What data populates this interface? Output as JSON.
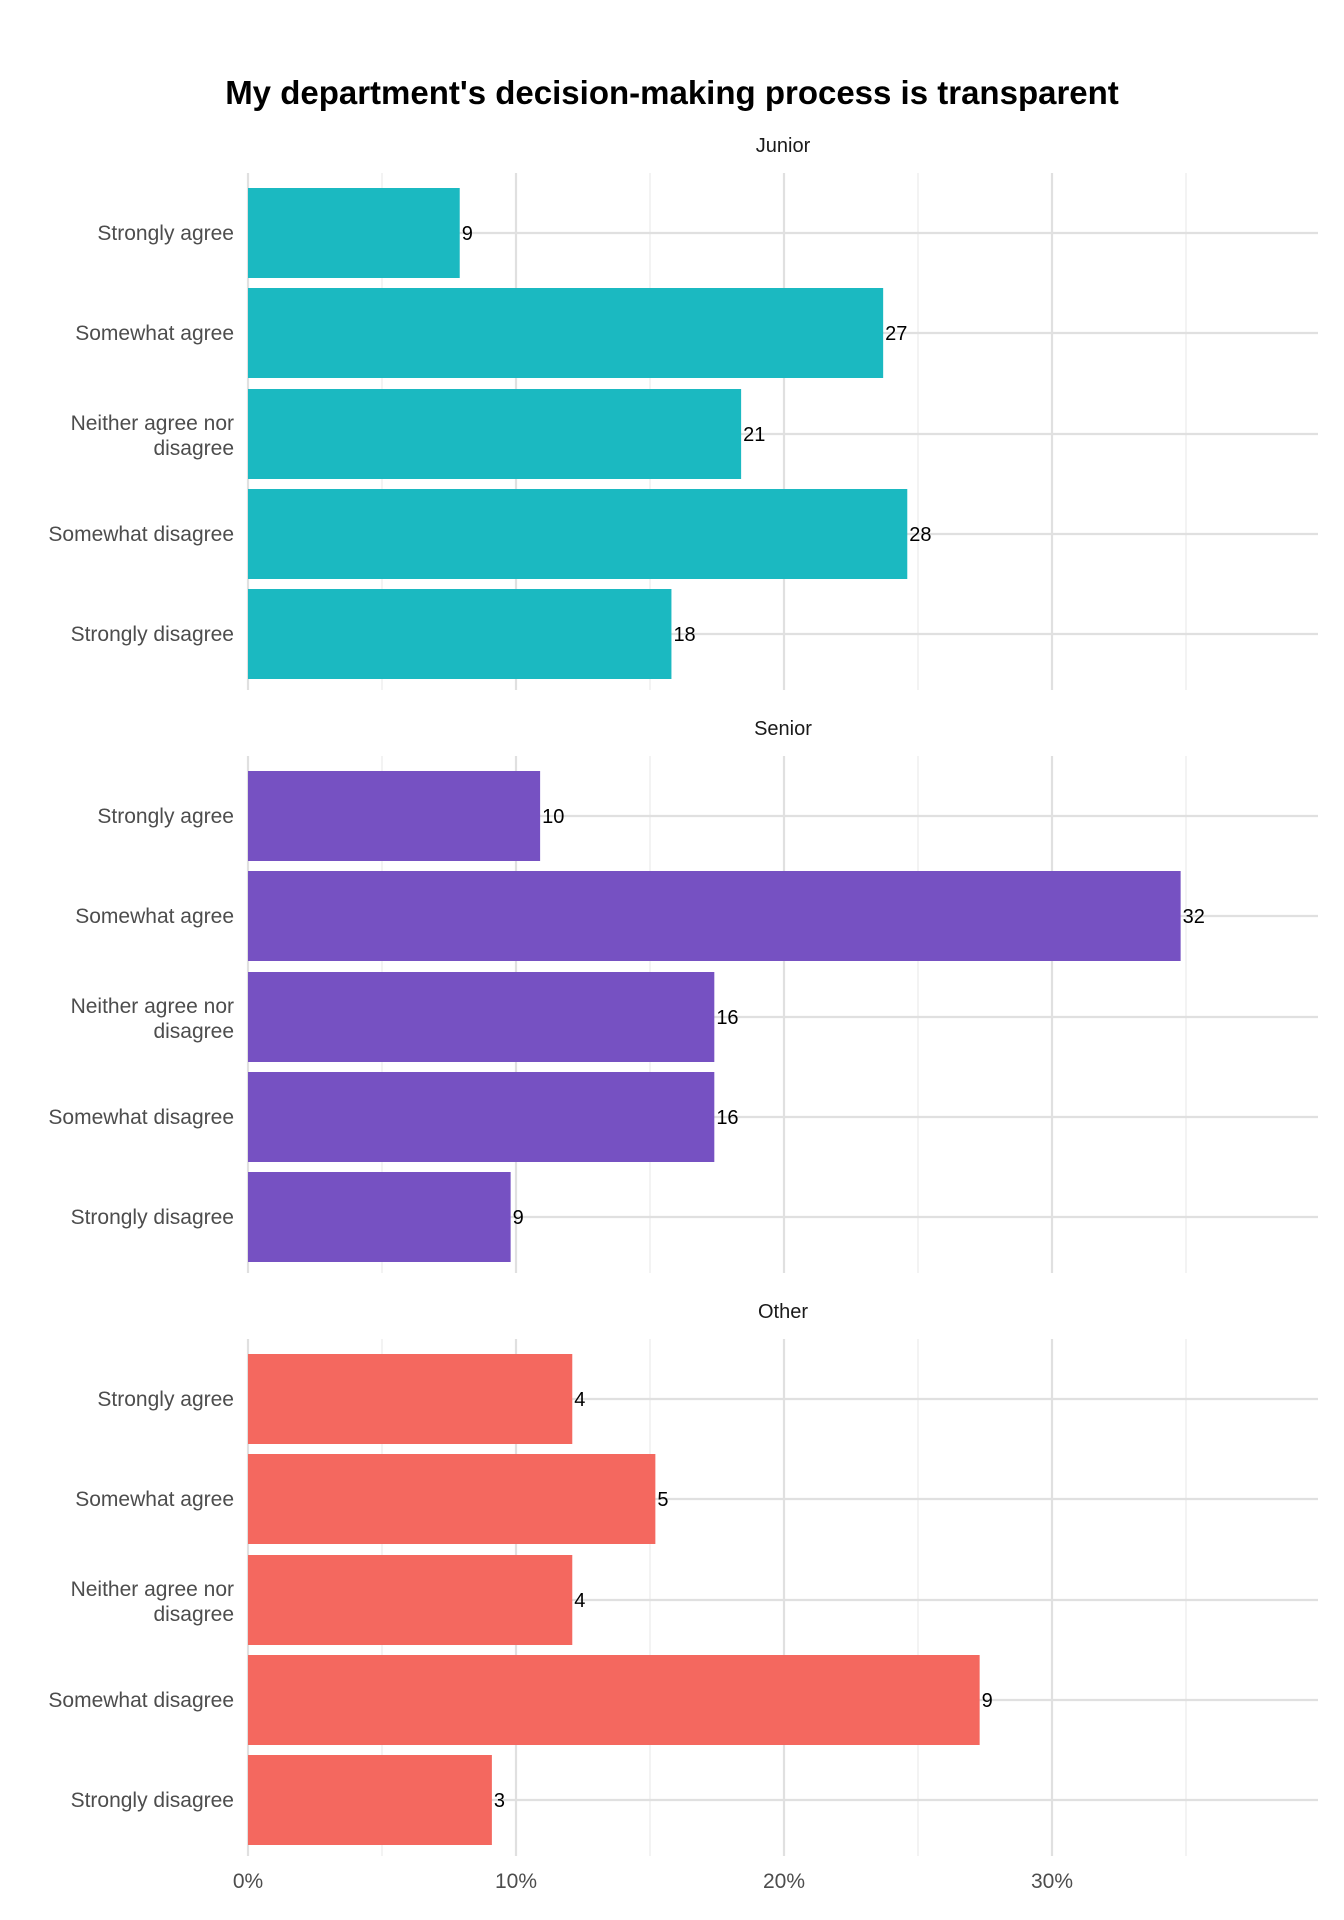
{
  "chart_data": {
    "type": "bar",
    "orientation": "horizontal",
    "title": "My department's decision-making process is transparent",
    "xlabel": "",
    "ylabel": "",
    "xlim": [
      0,
      40
    ],
    "x_ticks": [
      "0%",
      "10%",
      "20%",
      "30%"
    ],
    "grid": true,
    "categories": [
      "Strongly agree",
      "Somewhat agree",
      "Neither agree nor disagree",
      "Somewhat disagree",
      "Strongly disagree"
    ],
    "category_lines": [
      [
        "Strongly agree"
      ],
      [
        "Somewhat agree"
      ],
      [
        "Neither agree nor",
        "disagree"
      ],
      [
        "Somewhat disagree"
      ],
      [
        "Strongly disagree"
      ]
    ],
    "panels": [
      {
        "name": "Junior",
        "color": "#1BB9C1",
        "percent": [
          7.9,
          23.7,
          18.4,
          24.6,
          15.8
        ],
        "labels": [
          "9",
          "27",
          "21",
          "28",
          "18"
        ]
      },
      {
        "name": "Senior",
        "color": "#7651C2",
        "percent": [
          10.9,
          34.8,
          17.4,
          17.4,
          9.8
        ],
        "labels": [
          "10",
          "32",
          "16",
          "16",
          "9"
        ]
      },
      {
        "name": "Other",
        "color": "#F4685F",
        "percent": [
          12.1,
          15.2,
          12.1,
          27.3,
          9.1
        ],
        "labels": [
          "4",
          "5",
          "4",
          "9",
          "3"
        ]
      }
    ]
  }
}
